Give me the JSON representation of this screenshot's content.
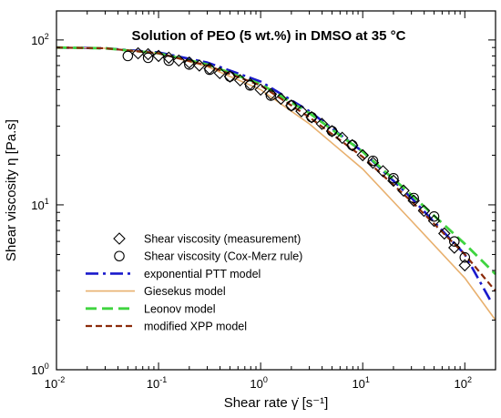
{
  "chart_data": {
    "type": "scatter",
    "title": "Solution of PEO (5 wt.%) in DMSO at 35 °C",
    "xlabel": "Shear rate γ̇ [s⁻¹]",
    "ylabel": "Shear viscosity η [Pa.s]",
    "x_scale": "log",
    "y_scale": "log",
    "xlim": [
      0.01,
      200
    ],
    "ylim": [
      1,
      150
    ],
    "grid": false,
    "legend_position": "bottom-left",
    "x_ticks": [
      {
        "value": 0.01,
        "base": "10",
        "exp": "-2"
      },
      {
        "value": 0.1,
        "base": "10",
        "exp": "-1"
      },
      {
        "value": 1,
        "base": "10",
        "exp": "0"
      },
      {
        "value": 10,
        "base": "10",
        "exp": "1"
      },
      {
        "value": 100,
        "base": "10",
        "exp": "2"
      }
    ],
    "y_ticks": [
      {
        "value": 1,
        "base": "10",
        "exp": "0"
      },
      {
        "value": 10,
        "base": "10",
        "exp": "1"
      },
      {
        "value": 100,
        "base": "10",
        "exp": "2"
      }
    ],
    "series": [
      {
        "name": "Shear viscosity (measurement)",
        "kind": "marker",
        "marker": "diamond",
        "color": "#000000",
        "x": [
          0.063,
          0.079,
          0.1,
          0.126,
          0.158,
          0.2,
          0.251,
          0.316,
          0.398,
          0.5,
          0.63,
          0.79,
          1.0,
          1.26,
          1.58,
          2.0,
          2.51,
          3.16,
          3.98,
          5.0,
          6.3,
          7.9,
          10.0,
          12.6,
          15.8,
          20.0,
          25.1,
          31.6,
          39.8,
          50.0,
          63.0,
          79.0,
          100.0
        ],
        "y": [
          83,
          82,
          80,
          78,
          75,
          73,
          70,
          67,
          63,
          60,
          57,
          54,
          50,
          47,
          44,
          40,
          37,
          34,
          31,
          28,
          25.5,
          23,
          20,
          18,
          16,
          14,
          12.2,
          10.6,
          9.2,
          8.0,
          6.7,
          5.5,
          4.3
        ]
      },
      {
        "name": "Shear viscosity (Cox-Merz rule)",
        "kind": "marker",
        "marker": "circle",
        "color": "#000000",
        "x": [
          0.05,
          0.079,
          0.126,
          0.2,
          0.316,
          0.5,
          0.79,
          1.26,
          2.0,
          3.16,
          5.0,
          7.9,
          12.6,
          20.0,
          31.6,
          50.0,
          79.0,
          100.0
        ],
        "y": [
          80,
          78,
          75,
          71,
          66,
          60,
          53,
          46,
          40,
          34,
          28,
          23,
          18.5,
          14.5,
          11.0,
          8.5,
          6.0,
          4.8
        ]
      },
      {
        "name": "exponential PTT model",
        "kind": "line",
        "dash": "dashdot",
        "color": "#1a1acc",
        "x": [
          0.01,
          0.03,
          0.1,
          0.3,
          1,
          3,
          10,
          30,
          100,
          180
        ],
        "y": [
          90,
          89,
          84,
          73,
          56,
          37,
          21,
          11,
          5,
          2.6
        ]
      },
      {
        "name": "Giesekus model",
        "kind": "line",
        "dash": "solid",
        "color": "#e8b06e",
        "x": [
          0.01,
          0.03,
          0.1,
          0.3,
          1,
          3,
          10,
          30,
          100,
          200
        ],
        "y": [
          90,
          89,
          83,
          69,
          50,
          31,
          16.5,
          8,
          3.6,
          2.0
        ]
      },
      {
        "name": "Leonov model",
        "kind": "line",
        "dash": "longdash",
        "color": "#3fd43f",
        "x": [
          0.01,
          0.03,
          0.1,
          0.3,
          1,
          3,
          10,
          30,
          100,
          200
        ],
        "y": [
          90,
          89,
          83,
          71,
          54,
          36,
          21,
          11.5,
          5.8,
          3.8
        ]
      },
      {
        "name": "modified XPP model",
        "kind": "line",
        "dash": "dash",
        "color": "#8b2a0a",
        "x": [
          0.01,
          0.03,
          0.1,
          0.3,
          1,
          3,
          10,
          30,
          100,
          200
        ],
        "y": [
          90,
          89,
          83,
          70,
          53,
          34,
          19.5,
          10.5,
          5.0,
          3.0
        ]
      }
    ]
  }
}
